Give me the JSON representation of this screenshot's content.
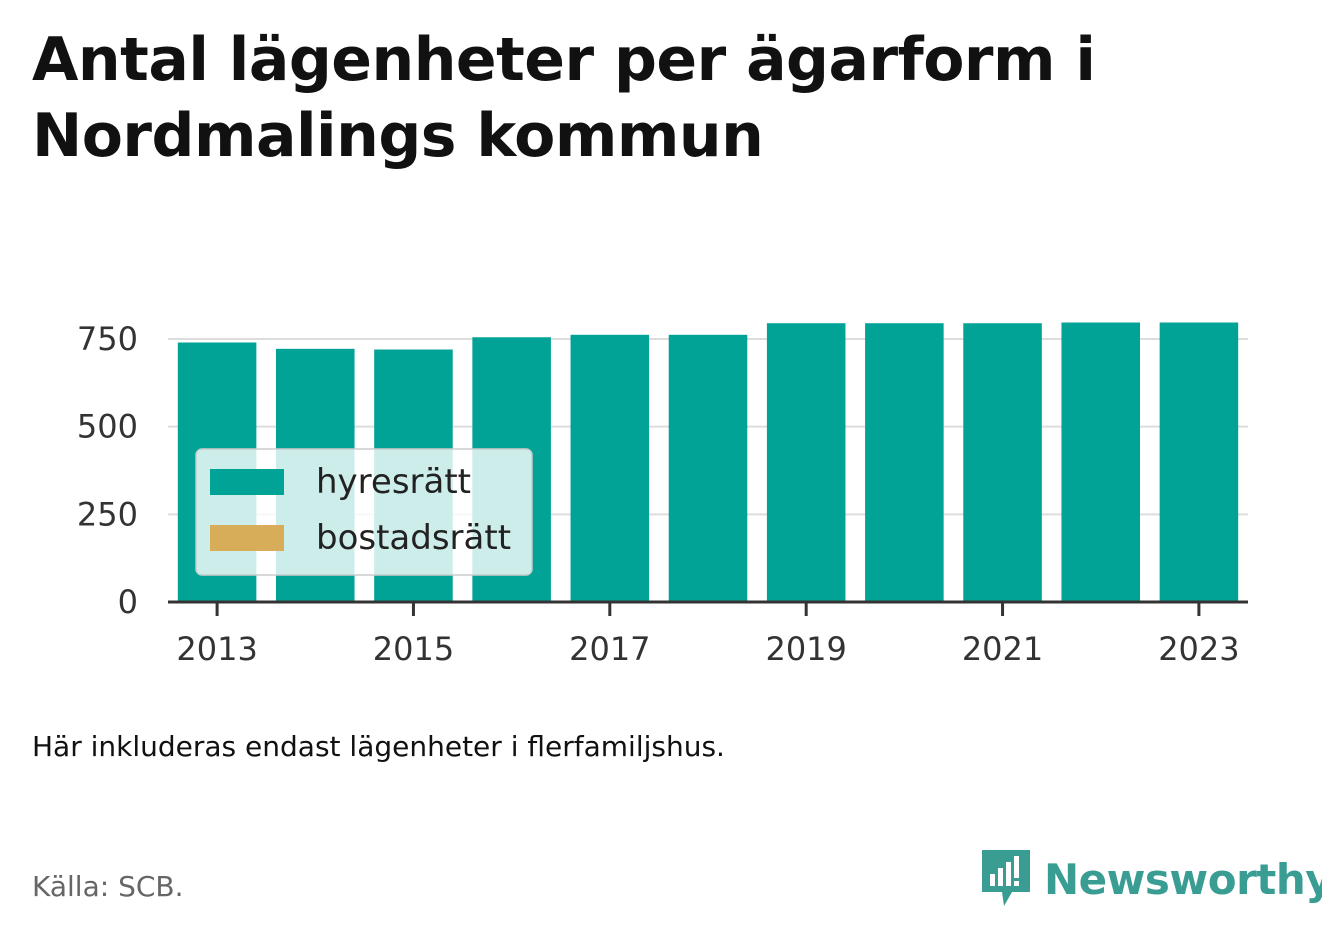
{
  "title": "Antal lägenheter per ägarform i Nordmalings kommun",
  "note": "Här inkluderas endast lägenheter i flerfamiljshus.",
  "source": "Källa: SCB.",
  "brand": {
    "name": "Newsworthy",
    "icon": "newsworthy-logo-icon",
    "color": "#3a9d94"
  },
  "chart_data": {
    "type": "bar",
    "stacked": true,
    "categories": [
      "2013",
      "2014",
      "2015",
      "2016",
      "2017",
      "2018",
      "2019",
      "2020",
      "2021",
      "2022",
      "2023"
    ],
    "x_tick_labels": [
      "2013",
      "2015",
      "2017",
      "2019",
      "2021",
      "2023"
    ],
    "series": [
      {
        "name": "hyresrätt",
        "color": "#00a396",
        "values": [
          740,
          722,
          720,
          755,
          762,
          762,
          795,
          795,
          795,
          797,
          797
        ]
      },
      {
        "name": "bostadsrätt",
        "color": "#d8ad5a",
        "values": [
          0,
          0,
          0,
          0,
          0,
          0,
          0,
          0,
          0,
          0,
          0
        ]
      }
    ],
    "y_ticks": [
      "0",
      "250",
      "500",
      "750"
    ],
    "ylim": [
      0,
      800
    ],
    "grid": true,
    "legend_position": "bottom-left"
  }
}
